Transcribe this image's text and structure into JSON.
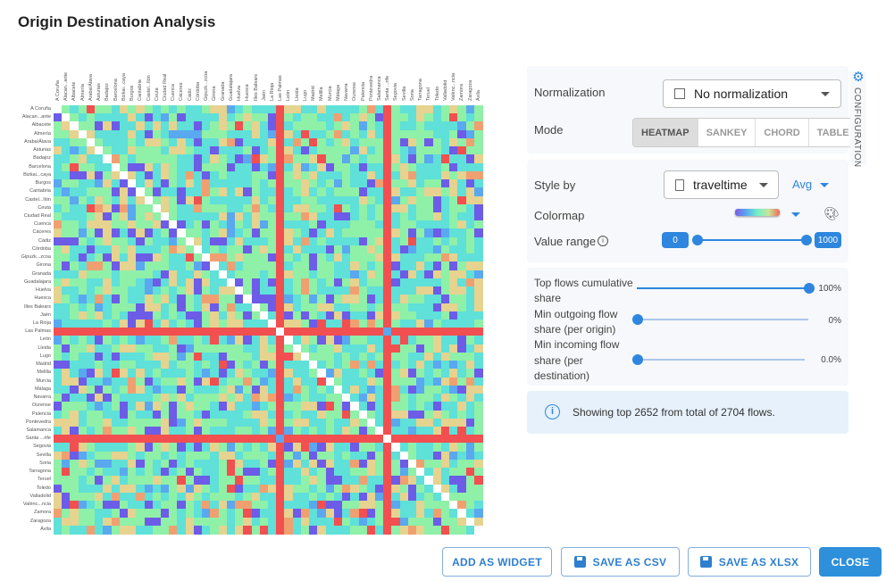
{
  "title": "Origin Destination Analysis",
  "heatmap": {
    "labels": [
      "A Coruña",
      "Alacan...ante",
      "Albacete",
      "Almería",
      "Araba/Álava",
      "Asturias",
      "Badajoz",
      "Barcelona",
      "Bizkai...caya",
      "Burgos",
      "Cantabria",
      "Castel...llón",
      "Ceuta",
      "Ciudad Real",
      "Cuenca",
      "Cáceres",
      "Cádiz",
      "Córdoba",
      "Gipuzk...zcoa",
      "Girona",
      "Granada",
      "Guadalajara",
      "Huelva",
      "Huesca",
      "Illes Balears",
      "Jaén",
      "La Rioja",
      "Las Palmas",
      "León",
      "Lleida",
      "Lugo",
      "Madrid",
      "Melilla",
      "Murcia",
      "Málaga",
      "Navarra",
      "Ourense",
      "Palencia",
      "Pontevedra",
      "Salamanca",
      "Santa ...rife",
      "Segovia",
      "Sevilla",
      "Soria",
      "Tarragona",
      "Teruel",
      "Toledo",
      "Valladolid",
      "Valènc...ncia",
      "Zamora",
      "Zaragoza",
      "Ávila"
    ],
    "max_value_locations": [
      "Las Palmas",
      "Santa ...rife"
    ],
    "colormap": [
      "#6c5ce7",
      "#5aa8ef",
      "#5fe0d8",
      "#8ff0a8",
      "#e5d38f",
      "#f0a070",
      "#f24f50"
    ]
  },
  "config": {
    "tab_label": "CONFIGURATION",
    "normalization_label": "Normalization",
    "normalization_value": "No normalization",
    "mode_label": "Mode",
    "modes": [
      "HEATMAP",
      "SANKEY",
      "CHORD",
      "TABLE"
    ],
    "active_mode": "HEATMAP",
    "style_by_label": "Style by",
    "style_by_value": "traveltime",
    "aggregation": "Avg",
    "colormap_label": "Colormap",
    "value_range_label": "Value range",
    "value_range_min": "0",
    "value_range_max": "1000",
    "top_flows_label": "Top flows cumulative share",
    "top_flows_value": "100%",
    "top_flows_fraction": 1.0,
    "min_out_label": "Min outgoing flow share (per origin)",
    "min_out_value": "0%",
    "min_out_fraction": 0,
    "min_in_label": "Min incoming flow share (per destination)",
    "min_in_value": "0.0%",
    "min_in_fraction": 0,
    "info": "Showing top 2652 from total of 2704 flows."
  },
  "buttons": {
    "add_widget": "ADD AS WIDGET",
    "save_csv": "SAVE AS CSV",
    "save_xlsx": "SAVE AS XLSX",
    "close": "CLOSE"
  }
}
